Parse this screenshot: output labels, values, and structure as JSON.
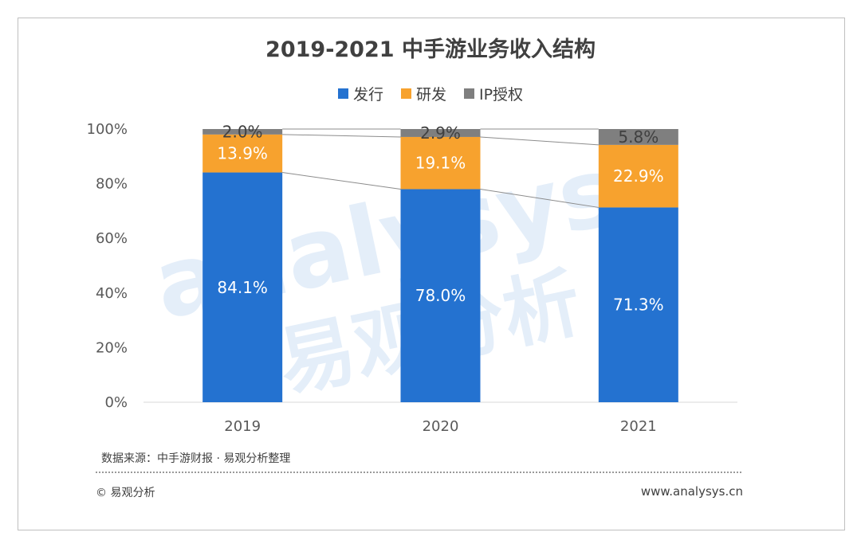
{
  "header": {
    "title": "2019-2021 中手游业务收入结构"
  },
  "chart_data": {
    "type": "bar",
    "stacked": true,
    "categories": [
      "2019",
      "2020",
      "2021"
    ],
    "series": [
      {
        "name": "发行",
        "color": "#2472d0",
        "values": [
          84.1,
          78.0,
          71.3
        ],
        "labels": [
          "84.1%",
          "78.0%",
          "71.3%"
        ]
      },
      {
        "name": "研发",
        "color": "#f7a22e",
        "values": [
          13.9,
          19.1,
          22.9
        ],
        "labels": [
          "13.9%",
          "19.1%",
          "22.9%"
        ]
      },
      {
        "name": "IP授权",
        "color": "#7f7f7f",
        "values": [
          2.0,
          2.9,
          5.8
        ],
        "labels": [
          "2.0%",
          "2.9%",
          "5.8%"
        ]
      }
    ],
    "yticks": [
      "0%",
      "20%",
      "40%",
      "60%",
      "80%",
      "100%"
    ],
    "ylim": [
      0,
      100
    ],
    "legend": "top-center",
    "grid": false,
    "series_lines": true
  },
  "footer": {
    "source": "数据来源：中手游财报 · 易观分析整理",
    "copyright": "© 易观分析",
    "website": "www.analysys.cn"
  },
  "watermark": {
    "brand": "analysys",
    "cn": "易观分析",
    "color": "#9fc3ea"
  }
}
